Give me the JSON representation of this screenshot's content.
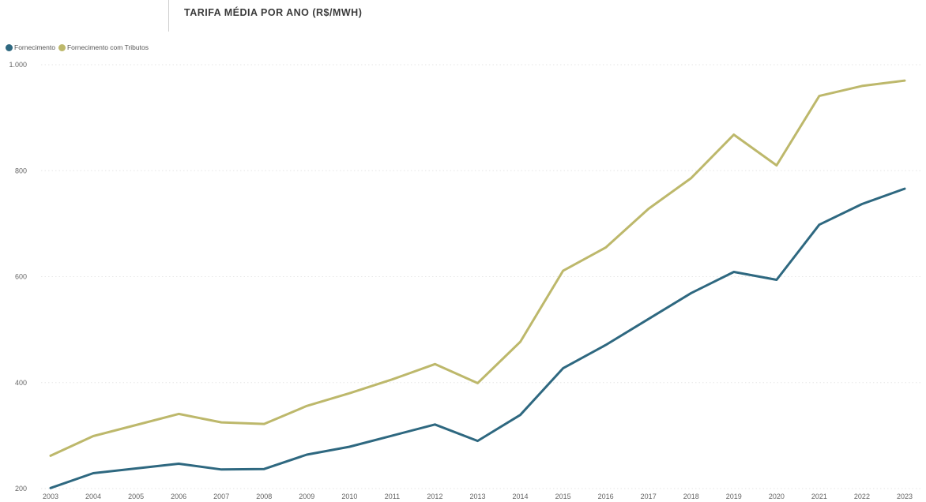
{
  "title": "TARIFA MÉDIA POR ANO (R$/MWH)",
  "legend": [
    {
      "name": "Fornecimento",
      "color": "#2e6880"
    },
    {
      "name": "Fornecimento com Tributos",
      "color": "#bdb86b"
    }
  ],
  "chart_data": {
    "type": "line",
    "title": "TARIFA MÉDIA POR ANO (R$/MWH)",
    "xlabel": "",
    "ylabel": "",
    "categories": [
      "2003",
      "2004",
      "2005",
      "2006",
      "2007",
      "2008",
      "2009",
      "2010",
      "2011",
      "2012",
      "2013",
      "2014",
      "2015",
      "2016",
      "2017",
      "2018",
      "2019",
      "2020",
      "2021",
      "2022",
      "2023"
    ],
    "series": [
      {
        "name": "Fornecimento",
        "color": "#2e6880",
        "values": [
          201,
          229,
          238,
          247,
          236,
          237,
          264,
          279,
          300,
          321,
          290,
          339,
          427,
          471,
          520,
          569,
          609,
          594,
          698,
          737,
          766
        ]
      },
      {
        "name": "Fornecimento com Tributos",
        "color": "#bdb86b",
        "values": [
          262,
          299,
          320,
          341,
          325,
          322,
          356,
          380,
          406,
          435,
          399,
          477,
          611,
          655,
          728,
          786,
          868,
          810,
          941,
          960,
          970
        ]
      }
    ],
    "ylim": [
      200,
      1000
    ],
    "yticks": [
      200,
      400,
      600,
      800,
      1000
    ],
    "ytick_labels": [
      "200",
      "400",
      "600",
      "800",
      "1.000"
    ],
    "grid": true,
    "legend_position": "top-left"
  }
}
